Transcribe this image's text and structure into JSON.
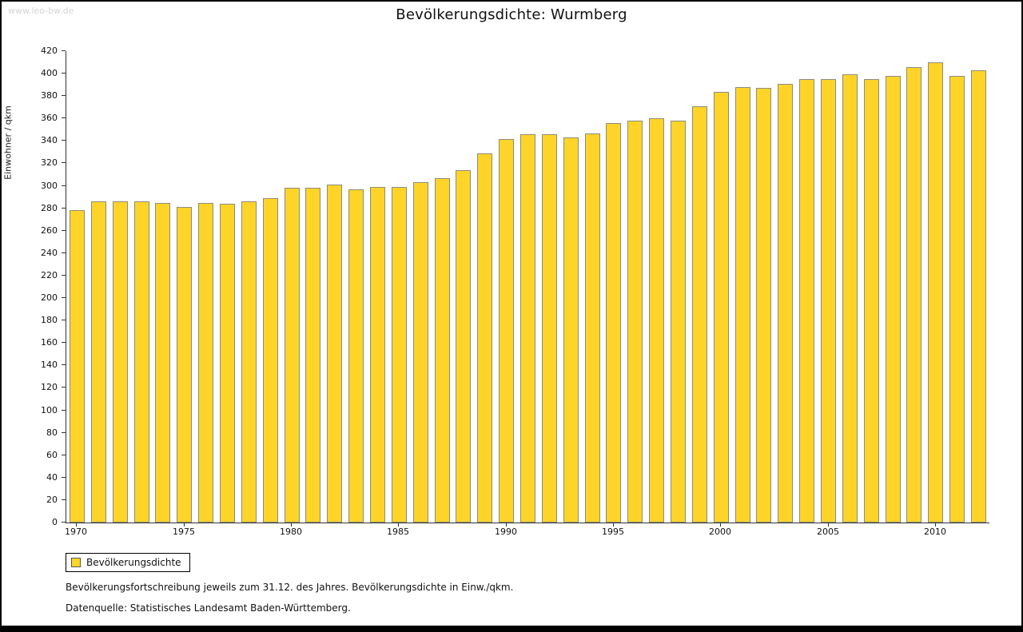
{
  "page": {
    "watermark": "www.leo-bw.de",
    "title": "Bevölkerungsdichte: Wurmberg"
  },
  "chart_data": {
    "type": "bar",
    "title": "Bevölkerungsdichte: Wurmberg",
    "xlabel": "",
    "ylabel": "Einwohner / qkm",
    "ylim": [
      0,
      420
    ],
    "ytick_step": 20,
    "grid": false,
    "legend_position": "bottom-left",
    "bar_color": "#FFD428",
    "bar_border_color": "#8c8c7a",
    "categories": [
      1970,
      1971,
      1972,
      1973,
      1974,
      1975,
      1976,
      1977,
      1978,
      1979,
      1980,
      1981,
      1982,
      1983,
      1984,
      1985,
      1986,
      1987,
      1988,
      1989,
      1990,
      1991,
      1992,
      1993,
      1994,
      1995,
      1996,
      1997,
      1998,
      1999,
      2000,
      2001,
      2002,
      2003,
      2004,
      2005,
      2006,
      2007,
      2008,
      2009,
      2010,
      2011,
      2012
    ],
    "values": [
      278,
      286,
      286,
      286,
      285,
      281,
      285,
      284,
      286,
      289,
      298,
      298,
      301,
      297,
      299,
      299,
      303,
      307,
      314,
      329,
      342,
      346,
      346,
      343,
      347,
      356,
      358,
      360,
      358,
      371,
      384,
      388,
      387,
      391,
      395,
      395,
      399,
      395,
      398,
      406,
      410,
      398,
      403
    ],
    "x_tick_years": [
      1970,
      1975,
      1980,
      1985,
      1990,
      1995,
      2000,
      2005,
      2010
    ]
  },
  "legend": {
    "label": "Bevölkerungsdichte"
  },
  "footer": {
    "line1": "Bevölkerungsfortschreibung jeweils zum 31.12. des Jahres. Bevölkerungsdichte in Einw./qkm.",
    "line2": "Datenquelle: Statistisches Landesamt Baden-Württemberg."
  }
}
